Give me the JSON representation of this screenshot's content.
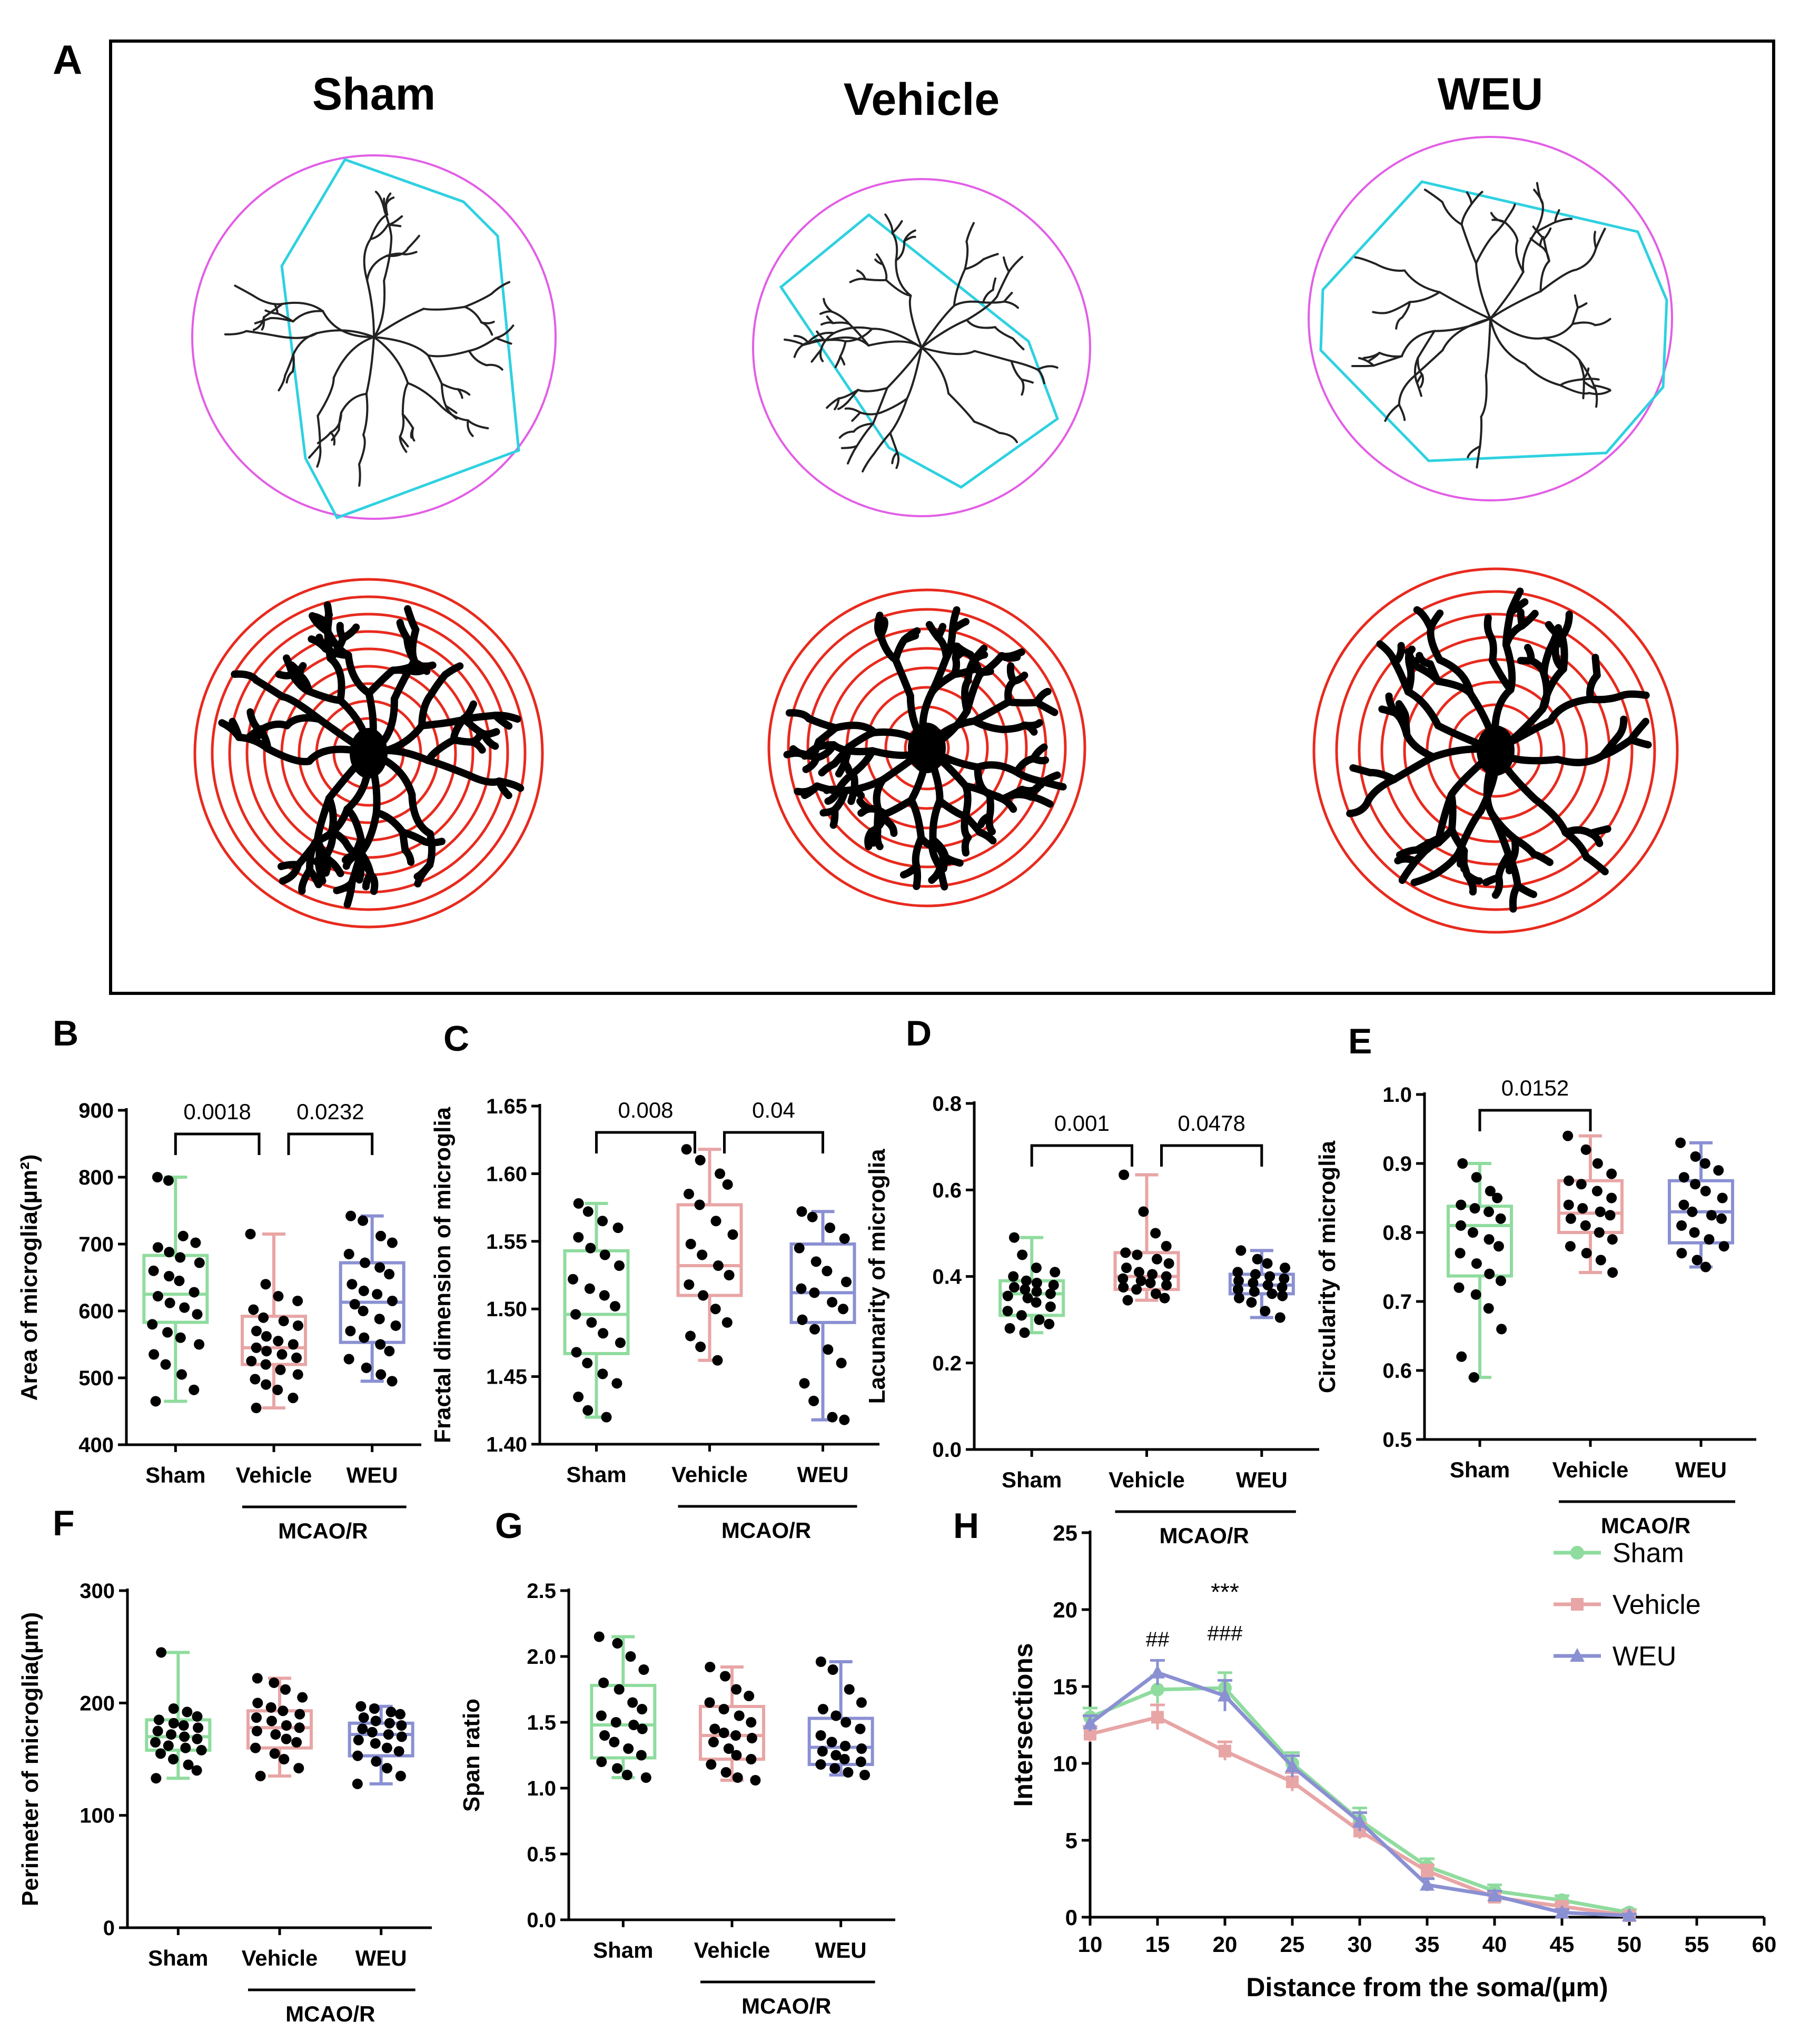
{
  "panel_labels": {
    "A": "A",
    "B": "B",
    "C": "C",
    "D": "D",
    "E": "E",
    "F": "F",
    "G": "G",
    "H": "H"
  },
  "panel_a": {
    "titles": [
      "Sham",
      "Vehicle",
      "WEU"
    ]
  },
  "colors": {
    "sham": "#8fdc9e",
    "vehicle": "#e8a5a5",
    "weu": "#8a90d2",
    "hull": "#2ed1e0",
    "circle": "#e25ee6",
    "ring": "#e82a1e"
  },
  "groups": [
    "Sham",
    "Vehicle",
    "WEU"
  ],
  "group_label": "MCAO/R",
  "chart_data": [
    {
      "panel": "B",
      "type": "box",
      "ylabel": "Area of microglia(µm²)",
      "ylim": [
        400,
        900
      ],
      "yticks": [
        400,
        500,
        600,
        700,
        800,
        900
      ],
      "boxes": [
        {
          "group": "Sham",
          "min": 465,
          "q1": 583,
          "median": 625,
          "q3": 683,
          "max": 800
        },
        {
          "group": "Vehicle",
          "min": 455,
          "q1": 520,
          "median": 545,
          "q3": 592,
          "max": 715
        },
        {
          "group": "WEU",
          "min": 495,
          "q1": 553,
          "median": 613,
          "q3": 672,
          "max": 742
        }
      ],
      "points": [
        [
          800,
          795,
          712,
          702,
          695,
          688,
          680,
          672,
          660,
          652,
          645,
          628,
          622,
          612,
          605,
          595,
          580,
          568,
          560,
          550,
          535,
          520,
          505,
          482,
          465
        ],
        [
          715,
          640,
          622,
          615,
          602,
          590,
          585,
          578,
          570,
          562,
          555,
          550,
          545,
          540,
          535,
          530,
          525,
          520,
          512,
          505,
          498,
          490,
          482,
          470,
          455
        ],
        [
          742,
          735,
          712,
          702,
          685,
          672,
          665,
          655,
          640,
          630,
          625,
          615,
          610,
          600,
          588,
          578,
          570,
          560,
          550,
          540,
          528,
          515,
          505,
          495
        ]
      ],
      "comparisons": [
        {
          "a": "Sham",
          "b": "Vehicle",
          "p": "0.0018"
        },
        {
          "a": "Vehicle",
          "b": "WEU",
          "p": "0.0232"
        }
      ]
    },
    {
      "panel": "C",
      "type": "box",
      "ylabel": "Fractal dimension of microglia",
      "ylim": [
        1.4,
        1.65
      ],
      "yticks": [
        1.4,
        1.45,
        1.5,
        1.55,
        1.6,
        1.65
      ],
      "boxes": [
        {
          "group": "Sham",
          "min": 1.42,
          "q1": 1.467,
          "median": 1.496,
          "q3": 1.543,
          "max": 1.578
        },
        {
          "group": "Vehicle",
          "min": 1.462,
          "q1": 1.51,
          "median": 1.532,
          "q3": 1.577,
          "max": 1.618
        },
        {
          "group": "WEU",
          "min": 1.418,
          "q1": 1.49,
          "median": 1.512,
          "q3": 1.548,
          "max": 1.572
        }
      ],
      "points": [
        [
          1.578,
          1.572,
          1.565,
          1.56,
          1.553,
          1.545,
          1.54,
          1.532,
          1.522,
          1.515,
          1.51,
          1.502,
          1.496,
          1.49,
          1.482,
          1.475,
          1.468,
          1.46,
          1.452,
          1.445,
          1.435,
          1.425,
          1.42
        ],
        [
          1.618,
          1.61,
          1.6,
          1.592,
          1.585,
          1.577,
          1.565,
          1.555,
          1.548,
          1.54,
          1.532,
          1.525,
          1.518,
          1.51,
          1.5,
          1.49,
          1.48,
          1.472,
          1.462
        ],
        [
          1.572,
          1.568,
          1.56,
          1.552,
          1.545,
          1.535,
          1.528,
          1.52,
          1.515,
          1.512,
          1.505,
          1.5,
          1.492,
          1.485,
          1.47,
          1.46,
          1.445,
          1.432,
          1.42,
          1.418
        ]
      ],
      "comparisons": [
        {
          "a": "Sham",
          "b": "Vehicle",
          "p": "0.008"
        },
        {
          "a": "Vehicle",
          "b": "WEU",
          "p": "0.04"
        }
      ]
    },
    {
      "panel": "D",
      "type": "box",
      "ylabel": "Lacunarity of microglia",
      "ylim": [
        0,
        0.8
      ],
      "yticks": [
        0,
        0.2,
        0.4,
        0.6,
        0.8
      ],
      "boxes": [
        {
          "group": "Sham",
          "min": 0.27,
          "q1": 0.31,
          "median": 0.36,
          "q3": 0.39,
          "max": 0.49
        },
        {
          "group": "Vehicle",
          "min": 0.345,
          "q1": 0.37,
          "median": 0.4,
          "q3": 0.455,
          "max": 0.635
        },
        {
          "group": "WEU",
          "min": 0.305,
          "q1": 0.36,
          "median": 0.38,
          "q3": 0.405,
          "max": 0.46
        }
      ],
      "points": [
        [
          0.49,
          0.45,
          0.42,
          0.41,
          0.4,
          0.39,
          0.385,
          0.38,
          0.375,
          0.37,
          0.365,
          0.36,
          0.355,
          0.35,
          0.34,
          0.33,
          0.32,
          0.31,
          0.3,
          0.29,
          0.28,
          0.27
        ],
        [
          0.635,
          0.55,
          0.5,
          0.47,
          0.455,
          0.45,
          0.44,
          0.43,
          0.42,
          0.41,
          0.405,
          0.4,
          0.395,
          0.39,
          0.385,
          0.38,
          0.375,
          0.37,
          0.36,
          0.35,
          0.345
        ],
        [
          0.46,
          0.44,
          0.43,
          0.42,
          0.41,
          0.405,
          0.4,
          0.395,
          0.39,
          0.385,
          0.38,
          0.375,
          0.37,
          0.365,
          0.36,
          0.355,
          0.35,
          0.34,
          0.32,
          0.305
        ]
      ],
      "comparisons": [
        {
          "a": "Sham",
          "b": "Vehicle",
          "p": "0.001"
        },
        {
          "a": "Vehicle",
          "b": "WEU",
          "p": "0.0478"
        }
      ]
    },
    {
      "panel": "E",
      "type": "box",
      "ylabel": "Circularity of microglia",
      "ylim": [
        0.5,
        1.0
      ],
      "yticks": [
        0.5,
        0.6,
        0.7,
        0.8,
        0.9,
        1.0
      ],
      "boxes": [
        {
          "group": "Sham",
          "min": 0.59,
          "q1": 0.737,
          "median": 0.81,
          "q3": 0.838,
          "max": 0.9
        },
        {
          "group": "Vehicle",
          "min": 0.742,
          "q1": 0.8,
          "median": 0.828,
          "q3": 0.875,
          "max": 0.94
        },
        {
          "group": "WEU",
          "min": 0.75,
          "q1": 0.785,
          "median": 0.83,
          "q3": 0.875,
          "max": 0.93
        }
      ],
      "points": [
        [
          0.9,
          0.88,
          0.86,
          0.85,
          0.84,
          0.835,
          0.83,
          0.82,
          0.81,
          0.8,
          0.79,
          0.78,
          0.77,
          0.755,
          0.74,
          0.73,
          0.72,
          0.71,
          0.69,
          0.66,
          0.62,
          0.59
        ],
        [
          0.94,
          0.92,
          0.9,
          0.885,
          0.875,
          0.87,
          0.86,
          0.85,
          0.84,
          0.835,
          0.83,
          0.825,
          0.82,
          0.81,
          0.8,
          0.79,
          0.78,
          0.77,
          0.76,
          0.742
        ],
        [
          0.93,
          0.91,
          0.9,
          0.89,
          0.88,
          0.87,
          0.86,
          0.85,
          0.84,
          0.83,
          0.825,
          0.82,
          0.81,
          0.8,
          0.79,
          0.78,
          0.77,
          0.76,
          0.75
        ]
      ],
      "comparisons": [
        {
          "a": "Sham",
          "b": "Vehicle",
          "p": "0.0152"
        }
      ]
    },
    {
      "panel": "F",
      "type": "box",
      "ylabel": "Perimeter of microglia(µm)",
      "ylim": [
        0,
        300
      ],
      "yticks": [
        0,
        100,
        200,
        300
      ],
      "boxes": [
        {
          "group": "Sham",
          "min": 133,
          "q1": 158,
          "median": 170,
          "q3": 185,
          "max": 245
        },
        {
          "group": "Vehicle",
          "min": 135,
          "q1": 160,
          "median": 178,
          "q3": 193,
          "max": 222
        },
        {
          "group": "WEU",
          "min": 128,
          "q1": 153,
          "median": 172,
          "q3": 182,
          "max": 197
        }
      ],
      "points": [
        [
          245,
          195,
          192,
          188,
          185,
          182,
          180,
          178,
          175,
          172,
          170,
          168,
          165,
          162,
          160,
          158,
          155,
          150,
          145,
          140,
          133
        ],
        [
          222,
          218,
          212,
          205,
          200,
          196,
          193,
          190,
          187,
          184,
          180,
          178,
          175,
          172,
          168,
          165,
          160,
          155,
          150,
          142,
          135
        ],
        [
          197,
          195,
          192,
          190,
          187,
          184,
          182,
          180,
          177,
          174,
          172,
          170,
          167,
          164,
          160,
          157,
          153,
          148,
          142,
          135,
          128
        ]
      ],
      "comparisons": []
    },
    {
      "panel": "G",
      "type": "box",
      "ylabel": "Span ratio",
      "ylim": [
        0,
        2.5
      ],
      "yticks": [
        0,
        0.5,
        1.0,
        1.5,
        2.0,
        2.5
      ],
      "boxes": [
        {
          "group": "Sham",
          "min": 1.08,
          "q1": 1.23,
          "median": 1.48,
          "q3": 1.78,
          "max": 2.15
        },
        {
          "group": "Vehicle",
          "min": 1.06,
          "q1": 1.22,
          "median": 1.4,
          "q3": 1.62,
          "max": 1.92
        },
        {
          "group": "WEU",
          "min": 1.1,
          "q1": 1.18,
          "median": 1.31,
          "q3": 1.53,
          "max": 1.96
        }
      ],
      "points": [
        [
          2.15,
          2.1,
          2.0,
          1.9,
          1.8,
          1.75,
          1.65,
          1.6,
          1.55,
          1.5,
          1.48,
          1.45,
          1.4,
          1.35,
          1.3,
          1.25,
          1.2,
          1.15,
          1.1,
          1.08
        ],
        [
          1.92,
          1.85,
          1.75,
          1.7,
          1.65,
          1.6,
          1.55,
          1.5,
          1.45,
          1.42,
          1.4,
          1.38,
          1.35,
          1.3,
          1.25,
          1.22,
          1.18,
          1.12,
          1.08,
          1.06
        ],
        [
          1.96,
          1.9,
          1.75,
          1.65,
          1.6,
          1.55,
          1.5,
          1.45,
          1.4,
          1.35,
          1.32,
          1.3,
          1.28,
          1.25,
          1.22,
          1.2,
          1.18,
          1.15,
          1.12,
          1.1
        ]
      ],
      "comparisons": []
    },
    {
      "panel": "H",
      "type": "line",
      "xlabel": "Distance from the soma/(µm)",
      "ylabel": "Intersections",
      "xlim": [
        10,
        60
      ],
      "ylim": [
        0,
        25
      ],
      "xticks": [
        10,
        15,
        20,
        25,
        30,
        35,
        40,
        45,
        50,
        55,
        60
      ],
      "yticks": [
        0,
        5,
        10,
        15,
        20,
        25
      ],
      "x": [
        10,
        15,
        20,
        25,
        30,
        35,
        40,
        45,
        50
      ],
      "series": [
        {
          "name": "Sham",
          "values": [
            13.0,
            14.8,
            14.9,
            10.0,
            6.3,
            3.3,
            1.7,
            1.1,
            0.3
          ],
          "err": [
            0.6,
            0.9,
            1.0,
            0.7,
            0.8,
            0.5,
            0.4,
            0.3,
            0.2
          ]
        },
        {
          "name": "Vehicle",
          "values": [
            11.9,
            13.0,
            10.8,
            8.8,
            5.6,
            3.0,
            1.3,
            0.7,
            0.1
          ],
          "err": [
            0.5,
            0.8,
            0.6,
            0.6,
            0.5,
            0.4,
            0.3,
            0.2,
            0.1
          ]
        },
        {
          "name": "WEU",
          "values": [
            12.6,
            15.9,
            14.4,
            9.8,
            6.2,
            2.1,
            1.4,
            0.3,
            0.1
          ],
          "err": [
            0.5,
            0.8,
            1.0,
            0.7,
            0.6,
            0.4,
            0.3,
            0.2,
            0.1
          ]
        }
      ],
      "annotations": [
        {
          "x": 15,
          "text": "##"
        },
        {
          "x": 20,
          "text": "***"
        },
        {
          "x": 20,
          "text": "###"
        }
      ]
    }
  ]
}
